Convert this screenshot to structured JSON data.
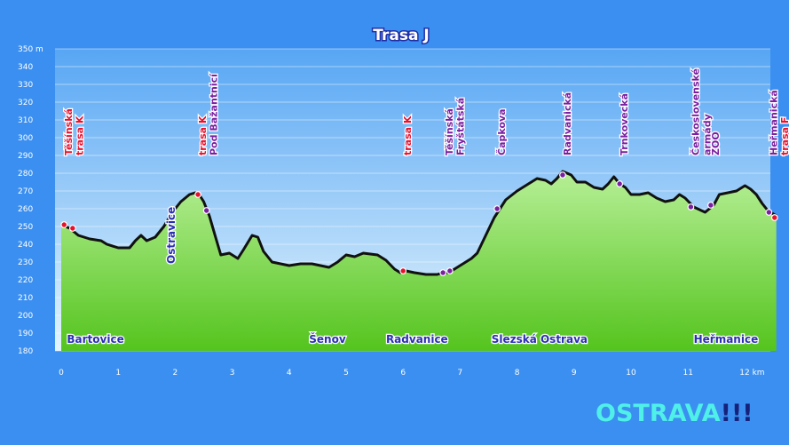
{
  "chart_data": {
    "type": "area",
    "title": "Trasa J",
    "xlabel": "",
    "ylabel": "",
    "x_unit": "km",
    "y_unit": "m",
    "xlim": [
      0,
      12.4
    ],
    "ylim": [
      180,
      350
    ],
    "x_ticks": [
      0,
      1,
      2,
      3,
      4,
      5,
      6,
      7,
      8,
      9,
      10,
      11,
      12
    ],
    "x_tick_labels": [
      "0",
      "1",
      "2",
      "3",
      "4",
      "5",
      "6",
      "7",
      "8",
      "9",
      "10",
      "11",
      "12 km"
    ],
    "y_ticks": [
      180,
      190,
      200,
      210,
      220,
      230,
      240,
      250,
      260,
      270,
      280,
      290,
      300,
      310,
      320,
      330,
      340,
      350
    ],
    "y_tick_labels": [
      "180",
      "190",
      "200",
      "210",
      "220",
      "230",
      "240",
      "250",
      "260",
      "270",
      "280",
      "290",
      "300",
      "310",
      "320",
      "330",
      "340",
      "350 m"
    ],
    "grid": true,
    "series": [
      {
        "values": [
          [
            0.0,
            251
          ],
          [
            0.15,
            249
          ],
          [
            0.3,
            245
          ],
          [
            0.5,
            243
          ],
          [
            0.7,
            242
          ],
          [
            0.8,
            240
          ],
          [
            1.0,
            238
          ],
          [
            1.2,
            238
          ],
          [
            1.3,
            242
          ],
          [
            1.4,
            245
          ],
          [
            1.5,
            242
          ],
          [
            1.65,
            244
          ],
          [
            1.8,
            250
          ],
          [
            1.95,
            258
          ],
          [
            2.1,
            264
          ],
          [
            2.25,
            268
          ],
          [
            2.35,
            269
          ],
          [
            2.42,
            268
          ],
          [
            2.5,
            264
          ],
          [
            2.6,
            256
          ],
          [
            2.7,
            245
          ],
          [
            2.8,
            234
          ],
          [
            2.95,
            235
          ],
          [
            3.1,
            232
          ],
          [
            3.2,
            237
          ],
          [
            3.35,
            245
          ],
          [
            3.45,
            244
          ],
          [
            3.55,
            236
          ],
          [
            3.7,
            230
          ],
          [
            4.0,
            228
          ],
          [
            4.2,
            229
          ],
          [
            4.4,
            229
          ],
          [
            4.55,
            228
          ],
          [
            4.7,
            227
          ],
          [
            4.85,
            230
          ],
          [
            5.0,
            234
          ],
          [
            5.15,
            233
          ],
          [
            5.3,
            235
          ],
          [
            5.55,
            234
          ],
          [
            5.7,
            231
          ],
          [
            5.85,
            226
          ],
          [
            5.95,
            224
          ],
          [
            6.05,
            225
          ],
          [
            6.2,
            224
          ],
          [
            6.4,
            223
          ],
          [
            6.6,
            223
          ],
          [
            6.7,
            224
          ],
          [
            6.8,
            224
          ],
          [
            7.0,
            228
          ],
          [
            7.2,
            232
          ],
          [
            7.3,
            235
          ],
          [
            7.45,
            245
          ],
          [
            7.6,
            255
          ],
          [
            7.8,
            265
          ],
          [
            8.0,
            270
          ],
          [
            8.2,
            274
          ],
          [
            8.35,
            277
          ],
          [
            8.5,
            276
          ],
          [
            8.6,
            274
          ],
          [
            8.7,
            277
          ],
          [
            8.8,
            281
          ],
          [
            8.95,
            279
          ],
          [
            9.05,
            275
          ],
          [
            9.2,
            275
          ],
          [
            9.35,
            272
          ],
          [
            9.5,
            271
          ],
          [
            9.6,
            274
          ],
          [
            9.7,
            278
          ],
          [
            9.8,
            274
          ],
          [
            9.9,
            272
          ],
          [
            10.0,
            268
          ],
          [
            10.15,
            268
          ],
          [
            10.3,
            269
          ],
          [
            10.45,
            266
          ],
          [
            10.6,
            264
          ],
          [
            10.75,
            265
          ],
          [
            10.85,
            268
          ],
          [
            10.95,
            266
          ],
          [
            11.1,
            261
          ],
          [
            11.3,
            258
          ],
          [
            11.45,
            262
          ],
          [
            11.55,
            268
          ],
          [
            11.7,
            269
          ],
          [
            11.85,
            270
          ],
          [
            12.0,
            273
          ],
          [
            12.1,
            271
          ],
          [
            12.2,
            268
          ],
          [
            12.3,
            263
          ],
          [
            12.4,
            259
          ],
          [
            12.55,
            256
          ]
        ]
      }
    ],
    "stops": [
      {
        "x": 0.05,
        "y": 251,
        "color": "red",
        "label": "Těšínská"
      },
      {
        "x": 0.2,
        "y": 249,
        "color": "red",
        "label": "trasa K"
      },
      {
        "x": 2.4,
        "y": 268,
        "color": "red",
        "label": "trasa K"
      },
      {
        "x": 2.55,
        "y": 259,
        "color": "purple",
        "label": "Pod Bažantnicí"
      },
      {
        "x": 6.0,
        "y": 225,
        "color": "red",
        "label": "trasa K"
      },
      {
        "x": 6.7,
        "y": 224,
        "color": "purple",
        "label": "Těšínská"
      },
      {
        "x": 6.82,
        "y": 225,
        "color": "purple",
        "label": "Fryštátská"
      },
      {
        "x": 7.65,
        "y": 260,
        "color": "purple",
        "label": "Čapkova"
      },
      {
        "x": 8.8,
        "y": 279,
        "color": "purple",
        "label": "Radvanická"
      },
      {
        "x": 9.8,
        "y": 274,
        "color": "purple",
        "label": "Trnkovecká"
      },
      {
        "x": 11.05,
        "y": 261,
        "color": "purple",
        "label": "Československé armády"
      },
      {
        "x": 11.4,
        "y": 262,
        "color": "purple",
        "label": "ZOO"
      },
      {
        "x": 12.42,
        "y": 258,
        "color": "purple",
        "label": "Heřmanická"
      },
      {
        "x": 12.52,
        "y": 255,
        "color": "red",
        "label": "trasa F"
      }
    ],
    "annotations": [
      {
        "text": "Ostravice",
        "x": 2.0,
        "orientation": "vertical",
        "color": "blue"
      },
      {
        "text": "Bartovice",
        "x": 0.1,
        "color": "blue"
      },
      {
        "text": "Šenov",
        "x": 4.35,
        "color": "blue"
      },
      {
        "text": "Radvanice",
        "x": 5.7,
        "color": "blue"
      },
      {
        "text": "Slezská Ostrava",
        "x": 7.55,
        "color": "blue"
      },
      {
        "text": "Heřmanice",
        "x": 11.1,
        "color": "blue"
      }
    ],
    "colors": {
      "background": "#3b8ff0",
      "sky_top": "#57a6f4",
      "sky_bottom": "#e4f5fd",
      "fill_top": "#b6ef96",
      "fill_bottom": "#55c41e",
      "line": "#111111",
      "red": "#e8112d",
      "purple": "#7a1fa0",
      "place": "#2a2fb0"
    }
  },
  "brand": {
    "name": "OSTRAVA",
    "suffix": "!!!"
  }
}
